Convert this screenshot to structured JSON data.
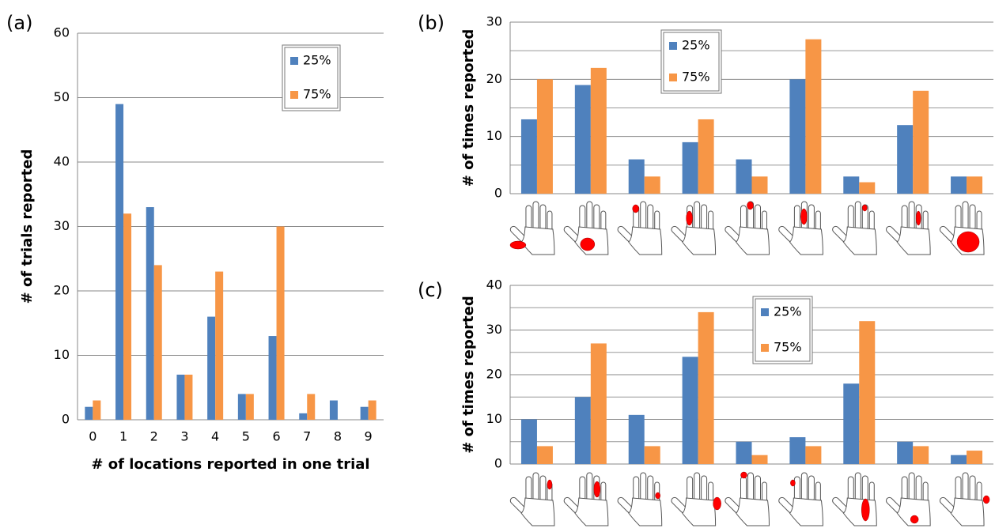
{
  "chart_data": [
    {
      "type": "bar",
      "label": "(a)",
      "x_label": "# of locations reported in one trial",
      "y_label": "# of trials reported",
      "categories": [
        "0",
        "1",
        "2",
        "3",
        "4",
        "5",
        "6",
        "7",
        "8",
        "9"
      ],
      "series": [
        {
          "name": "25%",
          "color": "#4f81bd",
          "values": [
            2,
            49,
            33,
            7,
            16,
            4,
            13,
            1,
            3,
            2
          ]
        },
        {
          "name": "75%",
          "color": "#f79646",
          "values": [
            3,
            32,
            24,
            7,
            23,
            4,
            30,
            4,
            0,
            3
          ]
        }
      ],
      "ylim": [
        0,
        60
      ],
      "yticks": [
        0,
        10,
        20,
        30,
        40,
        50,
        60
      ],
      "grid": true
    },
    {
      "type": "bar",
      "label": "(b)",
      "y_label": "# of times reported",
      "categories": [
        null,
        null,
        null,
        null,
        null,
        null,
        null,
        null,
        null
      ],
      "series": [
        {
          "name": "25%",
          "color": "#4f81bd",
          "values": [
            13,
            19,
            6,
            9,
            6,
            20,
            3,
            12,
            3
          ]
        },
        {
          "name": "75%",
          "color": "#f79646",
          "values": [
            20,
            22,
            3,
            13,
            3,
            27,
            2,
            18,
            3
          ]
        }
      ],
      "ylim": [
        0,
        30
      ],
      "yticks": [
        0,
        10,
        20,
        30
      ],
      "minor_yticks": [
        5,
        15,
        25
      ],
      "grid": true
    },
    {
      "type": "bar",
      "label": "(c)",
      "y_label": "# of times reported",
      "categories": [
        null,
        null,
        null,
        null,
        null,
        null,
        null,
        null,
        null
      ],
      "series": [
        {
          "name": "25%",
          "color": "#4f81bd",
          "values": [
            10,
            15,
            11,
            24,
            5,
            6,
            18,
            5,
            2
          ]
        },
        {
          "name": "75%",
          "color": "#f79646",
          "values": [
            4,
            27,
            4,
            34,
            2,
            4,
            32,
            4,
            3
          ]
        }
      ],
      "ylim": [
        0,
        40
      ],
      "yticks": [
        0,
        10,
        20,
        30,
        40
      ],
      "minor_yticks": [
        5,
        15,
        25,
        35
      ],
      "grid": true
    }
  ]
}
